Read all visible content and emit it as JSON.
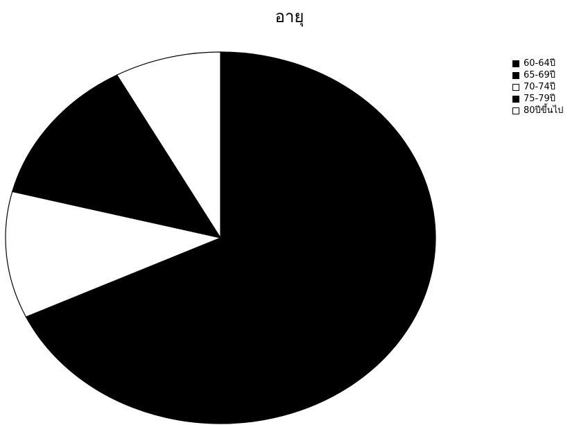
{
  "chart_data": {
    "type": "pie",
    "title": "อายุ",
    "categories": [
      "60-64ปี",
      "65-69ปี",
      "70-74ปี",
      "75-79ปี",
      "80ปีขึ้นไป"
    ],
    "values": [
      68,
      0,
      11,
      13,
      8
    ],
    "colors": [
      "#000000",
      "#000000",
      "#ffffff",
      "#000000",
      "#ffffff"
    ],
    "legend_position": "right"
  }
}
